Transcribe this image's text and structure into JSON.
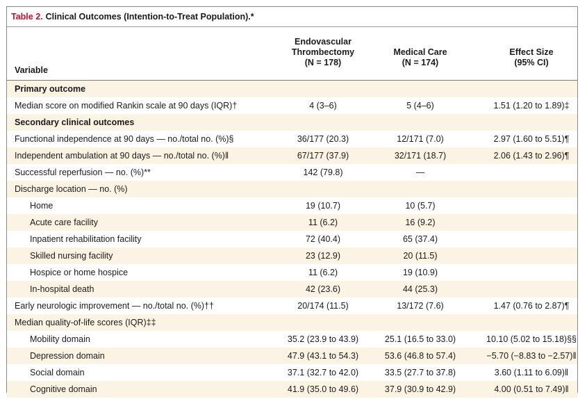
{
  "table": {
    "title_number": "Table 2.",
    "title_text": "Clinical Outcomes (Intention-to-Treat Population).*",
    "headers": {
      "variable": "Variable",
      "col1_line1": "Endovascular",
      "col1_line2": "Thrombectomy",
      "col1_line3": "(N = 178)",
      "col2_line1": "Medical Care",
      "col2_line2": "(N = 174)",
      "col3_line1": "Effect Size",
      "col3_line2": "(95% CI)"
    },
    "rows": [
      {
        "label": "Primary outcome",
        "c1": "",
        "c2": "",
        "c3": ""
      },
      {
        "label": "Median score on modified Rankin scale at 90 days (IQR)†",
        "c1": "4 (3–6)",
        "c2": "5 (4–6)",
        "c3": "1.51 (1.20 to 1.89)‡"
      },
      {
        "label": "Secondary clinical outcomes",
        "c1": "",
        "c2": "",
        "c3": ""
      },
      {
        "label": "Functional independence at 90 days — no./total no. (%)§",
        "c1": "36/177 (20.3)",
        "c2": "12/171 (7.0)",
        "c3": "2.97 (1.60 to 5.51)¶"
      },
      {
        "label": "Independent ambulation at 90 days — no./total no. (%)‖",
        "c1": "67/177 (37.9)",
        "c2": "32/171 (18.7)",
        "c3": "2.06 (1.43 to 2.96)¶"
      },
      {
        "label": "Successful reperfusion — no. (%)**",
        "c1": "142 (79.8)",
        "c2": "—",
        "c3": ""
      },
      {
        "label": "Discharge location — no. (%)",
        "c1": "",
        "c2": "",
        "c3": ""
      },
      {
        "label": "Home",
        "c1": "19 (10.7)",
        "c2": "10 (5.7)",
        "c3": ""
      },
      {
        "label": "Acute care facility",
        "c1": "11 (6.2)",
        "c2": "16 (9.2)",
        "c3": ""
      },
      {
        "label": "Inpatient rehabilitation facility",
        "c1": "72 (40.4)",
        "c2": "65 (37.4)",
        "c3": ""
      },
      {
        "label": "Skilled nursing facility",
        "c1": "23 (12.9)",
        "c2": "20 (11.5)",
        "c3": ""
      },
      {
        "label": "Hospice or home hospice",
        "c1": "11 (6.2)",
        "c2": "19 (10.9)",
        "c3": ""
      },
      {
        "label": "In-hospital death",
        "c1": "42 (23.6)",
        "c2": "44 (25.3)",
        "c3": ""
      },
      {
        "label": "Early neurologic improvement — no./total no. (%)††",
        "c1": "20/174 (11.5)",
        "c2": "13/172 (7.6)",
        "c3": "1.47 (0.76 to 2.87)¶"
      },
      {
        "label": "Median quality-of-life scores (IQR)‡‡",
        "c1": "",
        "c2": "",
        "c3": ""
      },
      {
        "label": "Mobility domain",
        "c1": "35.2 (23.9 to 43.9)",
        "c2": "25.1 (16.5 to 33.0)",
        "c3": "10.10 (5.02 to 15.18)§§"
      },
      {
        "label": "Depression domain",
        "c1": "47.9 (43.1 to 54.3)",
        "c2": "53.6 (46.8 to 57.4)",
        "c3": "−5.70 (−8.83 to −2.57)‖"
      },
      {
        "label": "Social domain",
        "c1": "37.1 (32.7 to 42.0)",
        "c2": "33.5 (27.7 to 37.8)",
        "c3": "3.60 (1.11 to 6.09)‖"
      },
      {
        "label": "Cognitive domain",
        "c1": "41.9 (35.0 to 49.6)",
        "c2": "37.9 (30.9 to 42.9)",
        "c3": "4.00 (0.51 to 7.49)‖"
      }
    ]
  }
}
